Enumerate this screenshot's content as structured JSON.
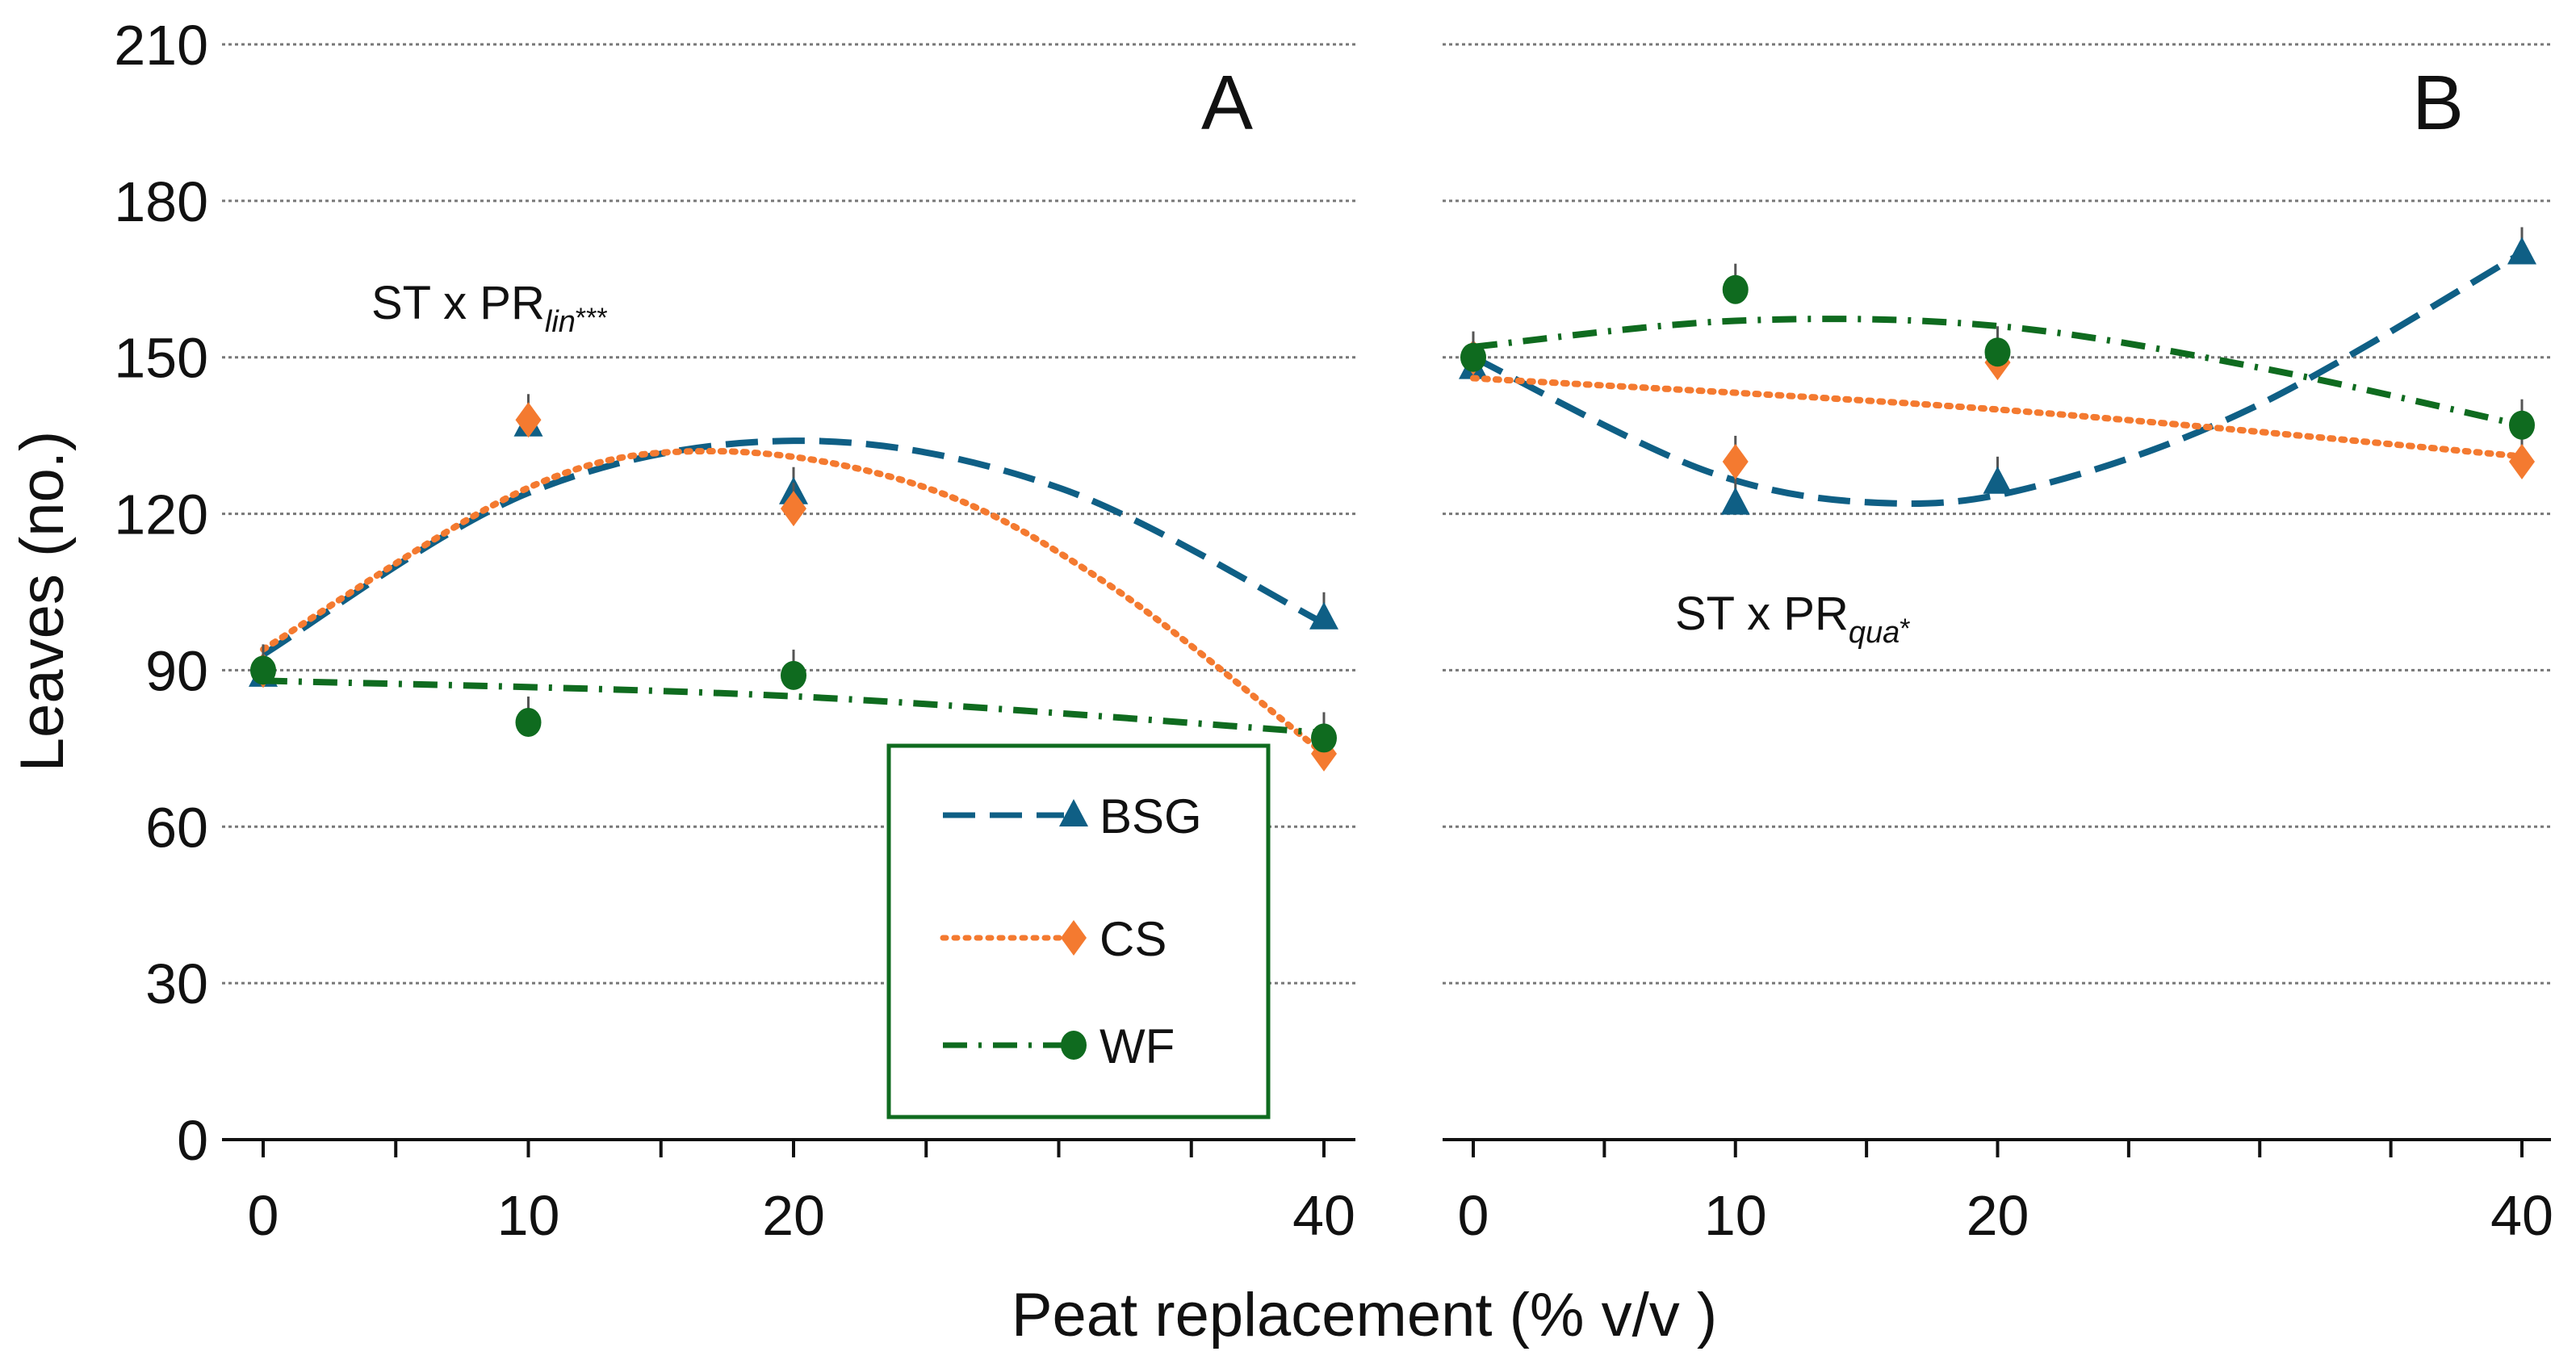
{
  "chart_data": [
    {
      "type": "line",
      "panel_label": "A",
      "annotation": {
        "main": "ST x PR",
        "sub": "lin",
        "sup": "***"
      },
      "x": [
        0,
        10,
        20,
        40
      ],
      "xticks": [
        0,
        10,
        20,
        40
      ],
      "xlim": [
        0,
        40
      ],
      "ylim": [
        0,
        210
      ],
      "yticks": [
        0,
        30,
        60,
        90,
        120,
        150,
        180,
        210
      ],
      "grid": true,
      "series": [
        {
          "name": "BSG",
          "marker": "triangle",
          "color": "#0f5f85",
          "dash": "dashed",
          "values": [
            89,
            137,
            124,
            100
          ],
          "trend": [
            [
              0,
              93
            ],
            [
              10,
              124
            ],
            [
              20,
              134
            ],
            [
              30,
              125
            ],
            [
              40,
              99
            ]
          ]
        },
        {
          "name": "CS",
          "marker": "diamond",
          "color": "#f47a30",
          "dash": "dotted",
          "values": [
            90,
            138,
            121,
            74
          ],
          "trend": [
            [
              0,
              94
            ],
            [
              10,
              125
            ],
            [
              17,
              132
            ],
            [
              25,
              125
            ],
            [
              32,
              106
            ],
            [
              40,
              74
            ]
          ]
        },
        {
          "name": "WF",
          "marker": "circle",
          "color": "#0f6b1f",
          "dash": "dashdot",
          "values": [
            90,
            80,
            89,
            77
          ],
          "trend": [
            [
              0,
              88
            ],
            [
              20,
              85
            ],
            [
              40,
              78
            ]
          ]
        }
      ]
    },
    {
      "type": "line",
      "panel_label": "B",
      "annotation": {
        "main": "ST x PR",
        "sub": "qua",
        "sup": "*"
      },
      "x": [
        0,
        10,
        20,
        40
      ],
      "xticks": [
        0,
        10,
        20,
        40
      ],
      "xlim": [
        0,
        40
      ],
      "ylim": [
        0,
        210
      ],
      "grid": true,
      "series": [
        {
          "name": "BSG",
          "marker": "triangle",
          "color": "#0f5f85",
          "dash": "dashed",
          "values": [
            148,
            122,
            126,
            170
          ],
          "trend": [
            [
              0,
              150
            ],
            [
              9,
              128
            ],
            [
              16,
              122
            ],
            [
              22,
              126
            ],
            [
              30,
              141
            ],
            [
              40,
              170
            ]
          ]
        },
        {
          "name": "CS",
          "marker": "diamond",
          "color": "#f47a30",
          "dash": "dotted",
          "values": [
            150,
            130,
            149,
            130
          ],
          "trend": [
            [
              0,
              146
            ],
            [
              20,
              140
            ],
            [
              40,
              131
            ]
          ]
        },
        {
          "name": "WF",
          "marker": "circle",
          "color": "#0f6b1f",
          "dash": "dashdot",
          "values": [
            150,
            163,
            151,
            137
          ],
          "trend": [
            [
              0,
              152
            ],
            [
              10,
              157
            ],
            [
              20,
              156
            ],
            [
              30,
              148
            ],
            [
              40,
              137
            ]
          ]
        }
      ]
    }
  ],
  "xlabel": "Peat replacement (% v/v )",
  "ylabel": "Leaves (no.)",
  "legend": {
    "placement": "bottom-right of panel A",
    "items": [
      "BSG",
      "CS",
      "WF"
    ]
  }
}
